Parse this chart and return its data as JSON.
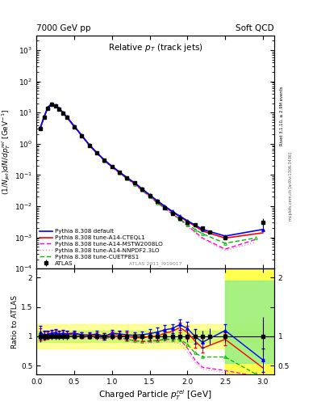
{
  "title_left": "7000 GeV pp",
  "title_right": "Soft QCD",
  "plot_title": "Relative $p_T$ (track jets)",
  "xlabel": "Charged Particle $p_T^{rel}$ [GeV]",
  "ylabel_main": "$(1/N_{jet})dN/dp_T^{rel}$ [GeV$^{-1}$]",
  "ylabel_ratio": "Ratio to ATLAS",
  "rivet_label": "Rivet 3.1.10, ≥ 2.9M events",
  "mcplots_label": "mcplots.cern.ch [arXiv:1306.3436]",
  "ref_label": "ATLAS 2011_I919017",
  "legend_entries": [
    "ATLAS",
    "Pythia 8.308 default",
    "Pythia 8.308 tune-A14-CTEQL1",
    "Pythia 8.308 tune-A14-MSTW2008LO",
    "Pythia 8.308 tune-A14-NNPDF2.3LO",
    "Pythia 8.308 tune-CUETP8S1"
  ],
  "atlas_x": [
    0.05,
    0.1,
    0.15,
    0.2,
    0.25,
    0.3,
    0.35,
    0.4,
    0.5,
    0.6,
    0.7,
    0.8,
    0.9,
    1.0,
    1.1,
    1.2,
    1.3,
    1.4,
    1.5,
    1.6,
    1.7,
    1.8,
    1.9,
    2.0,
    2.1,
    2.2,
    2.3,
    2.5,
    3.0
  ],
  "atlas_y": [
    3.0,
    7.0,
    14.0,
    18.0,
    16.0,
    13.0,
    9.5,
    7.0,
    3.5,
    1.8,
    0.9,
    0.5,
    0.3,
    0.18,
    0.12,
    0.08,
    0.055,
    0.035,
    0.022,
    0.014,
    0.009,
    0.006,
    0.004,
    0.003,
    0.0025,
    0.002,
    0.0015,
    0.001,
    0.003
  ],
  "atlas_yerr": [
    0.3,
    0.5,
    0.8,
    1.0,
    0.9,
    0.7,
    0.5,
    0.35,
    0.15,
    0.08,
    0.04,
    0.025,
    0.015,
    0.01,
    0.007,
    0.005,
    0.003,
    0.002,
    0.0015,
    0.001,
    0.0006,
    0.0004,
    0.0003,
    0.0003,
    0.0003,
    0.0002,
    0.0002,
    0.0001,
    0.001
  ],
  "default_x": [
    0.05,
    0.1,
    0.15,
    0.2,
    0.25,
    0.3,
    0.35,
    0.4,
    0.5,
    0.6,
    0.7,
    0.8,
    0.9,
    1.0,
    1.1,
    1.2,
    1.3,
    1.4,
    1.5,
    1.6,
    1.7,
    1.8,
    1.9,
    2.0,
    2.1,
    2.2,
    2.5,
    3.0
  ],
  "default_y": [
    3.2,
    7.2,
    14.5,
    19.0,
    17.0,
    13.5,
    10.0,
    7.3,
    3.7,
    1.85,
    0.92,
    0.52,
    0.3,
    0.19,
    0.125,
    0.082,
    0.056,
    0.036,
    0.023,
    0.015,
    0.01,
    0.0068,
    0.0048,
    0.0034,
    0.0025,
    0.0018,
    0.0011,
    0.0018
  ],
  "cteql1_x": [
    0.05,
    0.1,
    0.15,
    0.2,
    0.25,
    0.3,
    0.35,
    0.4,
    0.5,
    0.6,
    0.7,
    0.8,
    0.9,
    1.0,
    1.1,
    1.2,
    1.3,
    1.4,
    1.5,
    1.6,
    1.7,
    1.8,
    1.9,
    2.0,
    2.1,
    2.2,
    2.5,
    3.0
  ],
  "cteql1_y": [
    3.1,
    7.1,
    14.3,
    18.8,
    16.8,
    13.4,
    9.9,
    7.2,
    3.65,
    1.83,
    0.91,
    0.51,
    0.3,
    0.185,
    0.122,
    0.08,
    0.054,
    0.034,
    0.022,
    0.014,
    0.0095,
    0.0065,
    0.0046,
    0.0032,
    0.0023,
    0.0016,
    0.00095,
    0.0014
  ],
  "mstw_x": [
    0.05,
    0.1,
    0.15,
    0.2,
    0.25,
    0.3,
    0.35,
    0.4,
    0.5,
    0.6,
    0.7,
    0.8,
    0.9,
    1.0,
    1.1,
    1.2,
    1.3,
    1.4,
    1.5,
    1.6,
    1.7,
    1.8,
    1.9,
    2.0,
    2.1,
    2.2,
    2.5,
    2.9
  ],
  "mstw_y": [
    3.0,
    6.9,
    14.0,
    18.5,
    16.5,
    13.2,
    9.7,
    7.0,
    3.55,
    1.78,
    0.88,
    0.49,
    0.288,
    0.178,
    0.117,
    0.076,
    0.051,
    0.032,
    0.02,
    0.013,
    0.0085,
    0.0057,
    0.0038,
    0.0024,
    0.0015,
    0.00095,
    0.00042,
    0.00085
  ],
  "nnpdf_x": [
    0.05,
    0.1,
    0.15,
    0.2,
    0.25,
    0.3,
    0.35,
    0.4,
    0.5,
    0.6,
    0.7,
    0.8,
    0.9,
    1.0,
    1.1,
    1.2,
    1.3,
    1.4,
    1.5,
    1.6,
    1.7,
    1.8,
    1.9,
    2.0,
    2.1,
    2.2,
    2.5,
    2.9
  ],
  "nnpdf_y": [
    2.9,
    6.8,
    13.8,
    18.2,
    16.2,
    12.9,
    9.5,
    6.8,
    3.45,
    1.73,
    0.86,
    0.48,
    0.282,
    0.174,
    0.114,
    0.074,
    0.049,
    0.031,
    0.0195,
    0.0125,
    0.0082,
    0.0054,
    0.0035,
    0.0022,
    0.0014,
    0.0009,
    0.00038,
    0.0007
  ],
  "cuetp_x": [
    0.05,
    0.1,
    0.15,
    0.2,
    0.25,
    0.3,
    0.35,
    0.4,
    0.5,
    0.6,
    0.7,
    0.8,
    0.9,
    1.0,
    1.1,
    1.2,
    1.3,
    1.4,
    1.5,
    1.6,
    1.7,
    1.8,
    1.9,
    2.0,
    2.1,
    2.2,
    2.5,
    2.9
  ],
  "cuetp_y": [
    3.1,
    7.1,
    14.2,
    18.7,
    16.6,
    13.2,
    9.7,
    7.1,
    3.55,
    1.8,
    0.89,
    0.5,
    0.29,
    0.18,
    0.118,
    0.076,
    0.051,
    0.032,
    0.0205,
    0.013,
    0.0086,
    0.0057,
    0.0038,
    0.0026,
    0.0018,
    0.0013,
    0.00065,
    0.00095
  ],
  "col_atlas": "#000000",
  "col_default": "#0000FF",
  "col_cteql1": "#FF0000",
  "col_mstw": "#FF00CC",
  "col_nnpdf": "#FF88CC",
  "col_cuetp": "#00BB00",
  "ylim_main": [
    0.0001,
    3000.0
  ],
  "xlim": [
    0.0,
    3.15
  ],
  "ratio_ylim": [
    0.35,
    2.15
  ],
  "ratio_yticks": [
    0.5,
    1.0,
    1.5,
    2.0
  ]
}
